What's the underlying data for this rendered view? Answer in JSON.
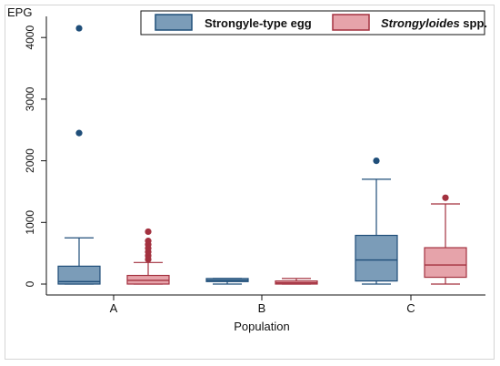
{
  "chart_data": {
    "type": "box",
    "ylabel": "EPG",
    "xlabel": "Population",
    "categories": [
      "A",
      "B",
      "C"
    ],
    "ylim": [
      0,
      4300
    ],
    "yticks": [
      0,
      1000,
      2000,
      3000,
      4000
    ],
    "grid": false,
    "legend_position": "top-right",
    "series": [
      {
        "name": "Strongyle-type egg",
        "color": "#7b9cb8",
        "stroke": "#1f4e79",
        "boxes": [
          {
            "category": "A",
            "min": 0,
            "q1": 0,
            "median": 40,
            "q3": 290,
            "max": 750,
            "outliers": [
              2450,
              4150
            ]
          },
          {
            "category": "B",
            "min": 0,
            "q1": 40,
            "median": 60,
            "q3": 90,
            "max": 90,
            "outliers": []
          },
          {
            "category": "C",
            "min": 0,
            "q1": 50,
            "median": 390,
            "q3": 790,
            "max": 1700,
            "outliers": [
              2000
            ]
          }
        ]
      },
      {
        "name": "Strongyloides spp.",
        "name_parts": [
          "Strongyloides",
          " spp."
        ],
        "color": "#e6a3aa",
        "stroke": "#a3313f",
        "boxes": [
          {
            "category": "A",
            "min": 0,
            "q1": 0,
            "median": 60,
            "q3": 140,
            "max": 350,
            "outliers": [
              400,
              460,
              520,
              580,
              640,
              700,
              850
            ]
          },
          {
            "category": "B",
            "min": 0,
            "q1": 0,
            "median": 20,
            "q3": 50,
            "max": 90,
            "outliers": []
          },
          {
            "category": "C",
            "min": 0,
            "q1": 110,
            "median": 310,
            "q3": 590,
            "max": 1300,
            "outliers": [
              1400
            ]
          }
        ]
      }
    ]
  }
}
